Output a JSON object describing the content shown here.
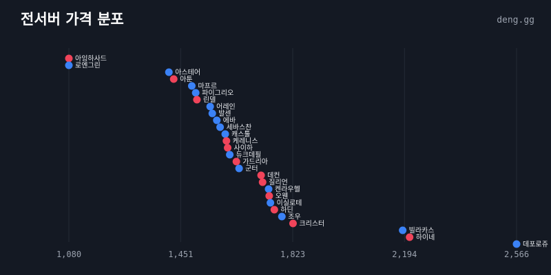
{
  "header": {
    "title": "전서버 가격 분포",
    "brand": "deng.gg"
  },
  "colors": {
    "background": "#141923",
    "grid": "#252b36",
    "blue": "#3b82f6",
    "red": "#f0445a"
  },
  "chart_data": {
    "type": "scatter",
    "title": "전서버 가격 분포",
    "xlabel": "",
    "ylabel": "",
    "xlim": [
      1080,
      2566
    ],
    "x_ticks": [
      "1,080",
      "1,451",
      "1,823",
      "2,194",
      "2,566"
    ],
    "x_tick_values": [
      1080,
      1451,
      1823,
      2194,
      2566
    ],
    "grid": "vertical",
    "points": [
      {
        "label": "아잉하사드",
        "x": 1080,
        "color": "red"
      },
      {
        "label": "로엔그린",
        "x": 1080,
        "color": "blue"
      },
      {
        "label": "아스테어",
        "x": 1412,
        "color": "blue"
      },
      {
        "label": "아툰",
        "x": 1428,
        "color": "red"
      },
      {
        "label": "마프르",
        "x": 1488,
        "color": "blue"
      },
      {
        "label": "파이그리오",
        "x": 1501,
        "color": "blue"
      },
      {
        "label": "린델",
        "x": 1505,
        "color": "red"
      },
      {
        "label": "어레인",
        "x": 1549,
        "color": "blue"
      },
      {
        "label": "발센",
        "x": 1556,
        "color": "blue"
      },
      {
        "label": "에바",
        "x": 1571,
        "color": "blue"
      },
      {
        "label": "세바스찬",
        "x": 1582,
        "color": "blue"
      },
      {
        "label": "캐스툴",
        "x": 1599,
        "color": "blue"
      },
      {
        "label": "케레니스",
        "x": 1603,
        "color": "red"
      },
      {
        "label": "사이하",
        "x": 1607,
        "color": "red"
      },
      {
        "label": "듀크데필",
        "x": 1614,
        "color": "blue"
      },
      {
        "label": "가드리아",
        "x": 1636,
        "color": "red"
      },
      {
        "label": "군터",
        "x": 1645,
        "color": "blue"
      },
      {
        "label": "데컨",
        "x": 1718,
        "color": "red"
      },
      {
        "label": "질리언",
        "x": 1723,
        "color": "red"
      },
      {
        "label": "켄라우헬",
        "x": 1743,
        "color": "blue"
      },
      {
        "label": "오웬",
        "x": 1745,
        "color": "red"
      },
      {
        "label": "이실로테",
        "x": 1749,
        "color": "blue"
      },
      {
        "label": "하딘",
        "x": 1762,
        "color": "red"
      },
      {
        "label": "조우",
        "x": 1787,
        "color": "blue"
      },
      {
        "label": "크리스터",
        "x": 1824,
        "color": "red"
      },
      {
        "label": "빌라카스",
        "x": 2188,
        "color": "blue"
      },
      {
        "label": "하이네",
        "x": 2211,
        "color": "red"
      },
      {
        "label": "데포로쥬",
        "x": 2566,
        "color": "blue"
      }
    ]
  }
}
